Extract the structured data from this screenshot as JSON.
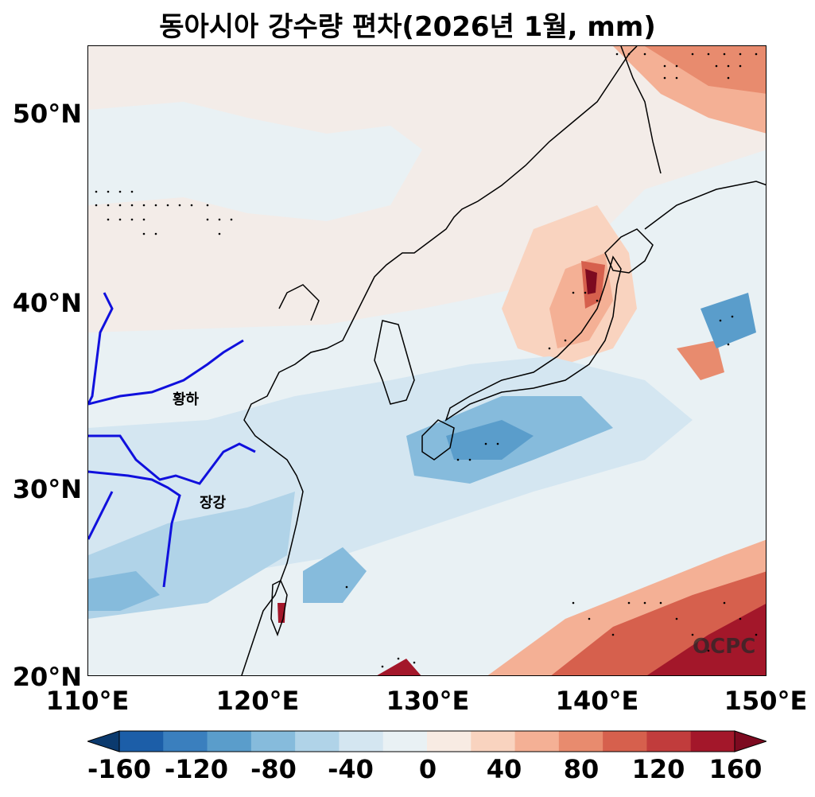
{
  "title": "동아시아 강수량 편차(2026년 1월, mm)",
  "axes": {
    "lat_labels": [
      "50°N",
      "40°N",
      "30°N",
      "20°N"
    ],
    "lon_labels": [
      "110°E",
      "120°E",
      "130°E",
      "140°E",
      "150°E"
    ],
    "lat_range": [
      20,
      53.5
    ],
    "lon_range": [
      110,
      150
    ]
  },
  "map_labels": {
    "yellow_river": "황하",
    "yangtze_river": "장강"
  },
  "watermark": "OCPC",
  "colorbar": {
    "ticks": [
      "-160",
      "-120",
      "-80",
      "-40",
      "0",
      "40",
      "80",
      "120",
      "160"
    ],
    "colors": [
      "#0b3a6e",
      "#1c5ea8",
      "#3a7fbe",
      "#5a9dcb",
      "#86bbdc",
      "#b0d3e8",
      "#d4e6f1",
      "#e9f1f4",
      "#f8ebe3",
      "#f9d3bf",
      "#f4b095",
      "#e88b6e",
      "#d6604d",
      "#c13c3c",
      "#a3172a",
      "#7d0a20"
    ],
    "extend": "both"
  }
}
